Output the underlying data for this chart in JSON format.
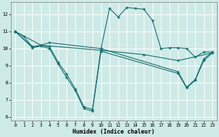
{
  "xlabel": "Humidex (Indice chaleur)",
  "xlim": [
    -0.5,
    23.5
  ],
  "ylim": [
    5.8,
    12.7
  ],
  "yticks": [
    6,
    7,
    8,
    9,
    10,
    11,
    12
  ],
  "xticks": [
    0,
    1,
    2,
    3,
    4,
    5,
    6,
    7,
    8,
    9,
    10,
    11,
    12,
    13,
    14,
    15,
    16,
    17,
    18,
    19,
    20,
    21,
    22,
    23
  ],
  "bg_color": "#ceeae7",
  "line_color": "#1a7070",
  "grid_color": "#ffffff",
  "series": [
    {
      "x": [
        0,
        1,
        2,
        3,
        4,
        10,
        11,
        12,
        13,
        14,
        15,
        16,
        17,
        18,
        19,
        20,
        21,
        22,
        23
      ],
      "y": [
        11.0,
        10.7,
        10.1,
        10.2,
        10.35,
        10.0,
        12.35,
        11.85,
        12.4,
        12.35,
        12.3,
        11.65,
        10.0,
        10.05,
        10.05,
        10.0,
        9.5,
        9.8,
        9.8
      ]
    },
    {
      "x": [
        0,
        2,
        3,
        4,
        5,
        6,
        7,
        8,
        9,
        10,
        19,
        20,
        21,
        22,
        23
      ],
      "y": [
        11.0,
        10.1,
        10.2,
        10.1,
        9.2,
        8.5,
        7.65,
        6.6,
        6.45,
        10.0,
        8.65,
        7.75,
        8.2,
        9.4,
        9.8
      ]
    },
    {
      "x": [
        0,
        2,
        3,
        4,
        5,
        6,
        7,
        8,
        9,
        10,
        19,
        20,
        21,
        22,
        23
      ],
      "y": [
        11.0,
        10.05,
        10.15,
        10.0,
        9.1,
        8.3,
        7.55,
        6.5,
        6.35,
        9.85,
        8.55,
        7.7,
        8.15,
        9.3,
        9.75
      ]
    },
    {
      "x": [
        0,
        3,
        10,
        15,
        19,
        23
      ],
      "y": [
        11.0,
        10.2,
        9.9,
        9.65,
        9.3,
        9.75
      ]
    }
  ]
}
